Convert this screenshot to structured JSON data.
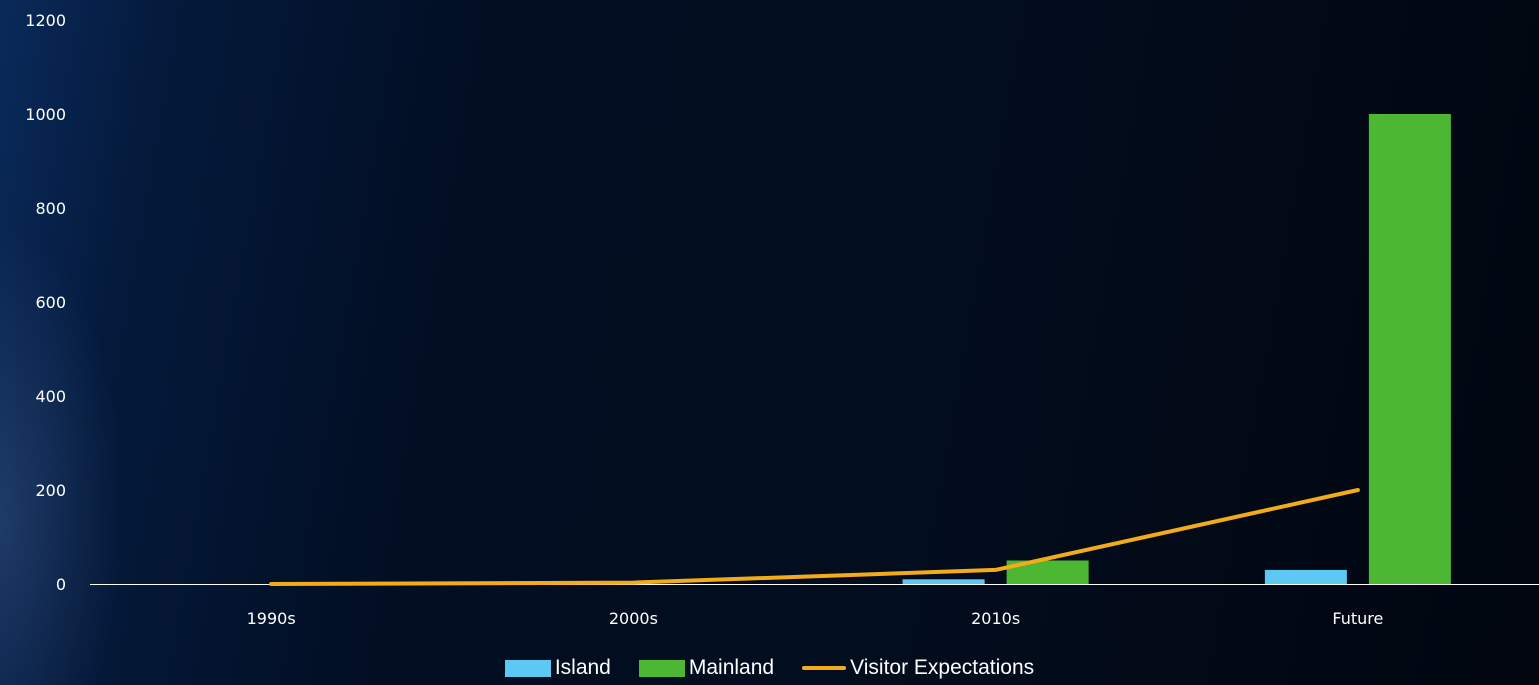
{
  "chart_data": {
    "type": "bar",
    "categories": [
      "1990s",
      "2000s",
      "2010s",
      "Future"
    ],
    "series": [
      {
        "name": "Island",
        "kind": "bar",
        "color": "#5ec8f5",
        "values": [
          0,
          0,
          10,
          30
        ]
      },
      {
        "name": "Mainland",
        "kind": "bar",
        "color": "#4cb733",
        "values": [
          0,
          0,
          50,
          1000
        ]
      },
      {
        "name": "Visitor Expectations",
        "kind": "line",
        "color": "#f3ab1a",
        "values": [
          0,
          3,
          30,
          200
        ]
      }
    ],
    "ylim": [
      0,
      1200
    ],
    "yticks": [
      "0",
      "200",
      "400",
      "600",
      "800",
      "1000",
      "1200"
    ],
    "grid": false,
    "legend_position": "bottom"
  }
}
